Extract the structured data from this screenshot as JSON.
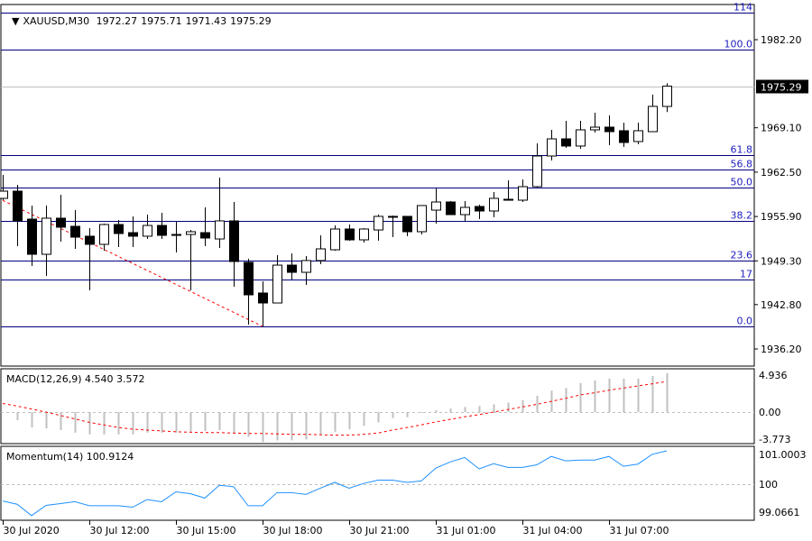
{
  "header": {
    "symbol_timeframe": "XAUUSD,M30",
    "open": "1972.27",
    "high": "1975.71",
    "low": "1971.43",
    "close": "1975.29"
  },
  "colors": {
    "background": "#ffffff",
    "bull_candle": "#ffffff",
    "bear_candle": "#000000",
    "fib_line": "#000080",
    "fib_label": "#2020c0",
    "trendline": "#ff0000",
    "macd_histogram": "#c0c0c0",
    "macd_signal": "#ff0000",
    "momentum_line": "#1e90ff",
    "zero_line": "#c0c0c0"
  },
  "chart_data": [
    {
      "type": "candlestick",
      "title": "XAUUSD,M30",
      "interval": "30 min",
      "first_bar": "30 Jul 2020 09:00",
      "last_bar": "31 Jul 2020 08:00",
      "ylim": [
        1934.0,
        1987.0
      ],
      "y_ticks": [
        "1982.20",
        "1969.10",
        "1962.50",
        "1955.90",
        "1949.30",
        "1942.80",
        "1936.20"
      ],
      "current_price": "1975.29",
      "x_ticks": [
        {
          "bar": 0,
          "label": "30 Jul 2020"
        },
        {
          "bar": 6,
          "label": "30 Jul 12:00"
        },
        {
          "bar": 12,
          "label": "30 Jul 15:00"
        },
        {
          "bar": 18,
          "label": "30 Jul 18:00"
        },
        {
          "bar": 24,
          "label": "30 Jul 21:00"
        },
        {
          "bar": 30,
          "label": "31 Jul 01:00"
        },
        {
          "bar": 36,
          "label": "31 Jul 04:00"
        },
        {
          "bar": 42,
          "label": "31 Jul 07:00"
        }
      ],
      "ohlc": [
        [
          1958.6,
          1962.08,
          1958.33,
          1959.67
        ],
        [
          1959.67,
          1960.61,
          1951.49,
          1955.25
        ],
        [
          1955.51,
          1957.53,
          1948.54,
          1950.28
        ],
        [
          1950.28,
          1957.53,
          1947.07,
          1955.65
        ],
        [
          1955.65,
          1959.13,
          1952.16,
          1954.31
        ],
        [
          1954.44,
          1956.85,
          1951.09,
          1952.83
        ],
        [
          1952.97,
          1954.17,
          1944.92,
          1951.76
        ],
        [
          1951.76,
          1954.84,
          1950.82,
          1954.71
        ],
        [
          1954.71,
          1955.38,
          1951.36,
          1953.37
        ],
        [
          1953.5,
          1955.92,
          1951.36,
          1952.97
        ],
        [
          1952.97,
          1956.18,
          1952.56,
          1954.57
        ],
        [
          1954.57,
          1956.45,
          1952.56,
          1953.1
        ],
        [
          1953.23,
          1955.11,
          1950.55,
          1953.23
        ],
        [
          1953.23,
          1953.9,
          1944.92,
          1953.64
        ],
        [
          1953.5,
          1957.26,
          1951.49,
          1952.7
        ],
        [
          1952.56,
          1961.68,
          1951.22,
          1955.25
        ],
        [
          1955.25,
          1958.06,
          1945.46,
          1949.21
        ],
        [
          1949.08,
          1949.61,
          1939.82,
          1944.25
        ],
        [
          1944.52,
          1946.26,
          1939.56,
          1943.04
        ],
        [
          1943.04,
          1950.15,
          1943.04,
          1948.67
        ],
        [
          1948.67,
          1950.42,
          1946.53,
          1947.6
        ],
        [
          1947.6,
          1950.02,
          1945.72,
          1949.35
        ],
        [
          1949.35,
          1953.1,
          1948.81,
          1951.09
        ],
        [
          1950.95,
          1954.57,
          1950.82,
          1954.04
        ],
        [
          1954.04,
          1954.71,
          1952.3,
          1952.43
        ],
        [
          1952.43,
          1954.17,
          1952.03,
          1954.04
        ],
        [
          1953.9,
          1956.18,
          1952.3,
          1955.92
        ],
        [
          1955.92,
          1956.05,
          1952.83,
          1955.92
        ],
        [
          1955.92,
          1955.92,
          1952.97,
          1953.64
        ],
        [
          1953.64,
          1957.53,
          1953.23,
          1957.53
        ],
        [
          1956.85,
          1960.07,
          1954.84,
          1958.06
        ],
        [
          1958.06,
          1958.2,
          1956.18,
          1956.18
        ],
        [
          1956.18,
          1958.2,
          1955.25,
          1957.26
        ],
        [
          1957.39,
          1957.66,
          1955.51,
          1956.72
        ],
        [
          1956.72,
          1959.54,
          1955.78,
          1958.6
        ],
        [
          1958.46,
          1961.28,
          1958.46,
          1958.46
        ],
        [
          1958.33,
          1961.41,
          1958.06,
          1960.34
        ],
        [
          1960.34,
          1966.78,
          1960.21,
          1964.9
        ],
        [
          1964.9,
          1968.79,
          1964.23,
          1967.45
        ],
        [
          1967.45,
          1970.13,
          1966.11,
          1966.38
        ],
        [
          1966.38,
          1970.13,
          1965.97,
          1968.79
        ],
        [
          1968.79,
          1971.34,
          1968.39,
          1969.19
        ],
        [
          1969.19,
          1970.94,
          1966.51,
          1968.52
        ],
        [
          1968.66,
          1969.86,
          1966.24,
          1966.91
        ],
        [
          1967.05,
          1969.86,
          1966.64,
          1968.66
        ],
        [
          1968.52,
          1974.02,
          1968.52,
          1972.28
        ],
        [
          1972.27,
          1975.71,
          1971.43,
          1975.29
        ]
      ],
      "fibonacci": [
        {
          "label": "114",
          "price": 1986.2
        },
        {
          "label": "100.0",
          "price": 1980.73
        },
        {
          "label": "61.8",
          "price": 1965.0
        },
        {
          "label": "56.8",
          "price": 1962.85
        },
        {
          "label": "50.0",
          "price": 1960.21
        },
        {
          "label": "38.2",
          "price": 1955.25
        },
        {
          "label": "23.6",
          "price": 1949.35
        },
        {
          "label": "17",
          "price": 1946.53
        },
        {
          "label": "0.0",
          "price": 1939.56
        }
      ],
      "trendline": {
        "from": {
          "bar": 0,
          "price": 1958.3
        },
        "to": {
          "bar": 18,
          "price": 1939.56
        },
        "style": "dotted"
      }
    },
    {
      "type": "bar+line",
      "title": "MACD(12,26,9) 4.540 3.572",
      "label": "MACD(12,26,9)",
      "main_value": "4.540",
      "signal_value": "3.572",
      "ylim": [
        -3.773,
        4.936
      ],
      "y_ticks": [
        "4.936",
        "0.00",
        "-3.773"
      ],
      "histogram": [
        null,
        -0.95,
        -1.8,
        -1.9,
        -2.1,
        -2.4,
        -2.6,
        -2.6,
        -2.6,
        -2.6,
        -2.4,
        -2.4,
        -2.4,
        -2.3,
        -2.2,
        -2.1,
        -2.4,
        -2.9,
        -3.5,
        -3.3,
        -3.3,
        -3.2,
        -2.6,
        -2.3,
        -2.0,
        -1.6,
        -1.2,
        -0.7,
        -0.6,
        -0.1,
        0.2,
        0.4,
        0.6,
        0.7,
        0.9,
        1.1,
        1.4,
        1.9,
        2.5,
        2.8,
        3.4,
        3.7,
        3.9,
        3.9,
        3.9,
        4.2,
        4.54
      ],
      "signal": [
        1.0,
        0.7,
        0.35,
        0,
        -0.4,
        -0.8,
        -1.2,
        -1.5,
        -1.8,
        -2.0,
        -2.1,
        -2.2,
        -2.3,
        -2.35,
        -2.4,
        -2.4,
        -2.45,
        -2.5,
        -2.5,
        -2.55,
        -2.6,
        -2.6,
        -2.65,
        -2.7,
        -2.7,
        -2.6,
        -2.45,
        -2.1,
        -1.8,
        -1.5,
        -1.15,
        -0.85,
        -0.55,
        -0.3,
        0,
        0.3,
        0.6,
        0.9,
        1.25,
        1.6,
        2.0,
        2.25,
        2.55,
        2.8,
        3.05,
        3.3,
        3.572
      ]
    },
    {
      "type": "line",
      "title": "Momentum(14) 100.9124",
      "label": "Momentum(14)",
      "value": "100.9124",
      "ylim": [
        99.0661,
        101.0003
      ],
      "y_ticks": [
        "101.0003",
        "100",
        "99.0661"
      ],
      "values": [
        99.54,
        99.45,
        99.14,
        99.42,
        99.47,
        99.52,
        99.41,
        99.41,
        99.41,
        99.37,
        99.58,
        99.52,
        99.79,
        99.74,
        99.62,
        99.97,
        99.93,
        99.41,
        99.41,
        99.77,
        99.77,
        99.72,
        99.89,
        100.05,
        99.89,
        100.02,
        100.11,
        100.11,
        100.05,
        100.09,
        100.44,
        100.61,
        100.73,
        100.42,
        100.56,
        100.46,
        100.46,
        100.53,
        100.76,
        100.64,
        100.66,
        100.66,
        100.76,
        100.49,
        100.55,
        100.82,
        100.9124
      ]
    }
  ]
}
